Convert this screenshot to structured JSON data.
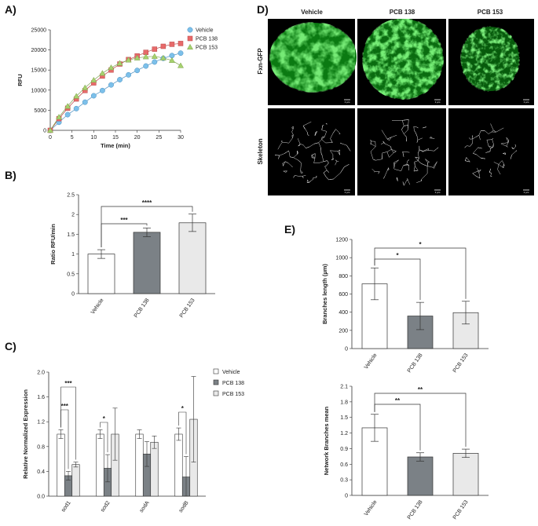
{
  "colors": {
    "vehicle": "#7cc0ea",
    "pcb138": "#e76a6a",
    "pcb153": "#a6d26e",
    "bar_vehicle": "#ffffff",
    "bar_pcb138": "#7b8186",
    "bar_pcb153": "#e9e9e9",
    "green": "#2ecf2e"
  },
  "panels": {
    "a": "A)",
    "b": "B)",
    "c": "C)",
    "d": "D)",
    "e": "E)"
  },
  "panel_d": {
    "columns": [
      "Vehicle",
      "PCB 138",
      "PCB 153"
    ],
    "rows": [
      "Fxn-GFP",
      "Skeleton"
    ],
    "scale_label": "1 µm"
  },
  "chart_data": [
    {
      "id": "A",
      "type": "line",
      "xlabel": "Time (min)",
      "ylabel": "RFU",
      "xlim": [
        0,
        30
      ],
      "ylim": [
        0,
        25000
      ],
      "xticks": [
        0,
        5,
        10,
        15,
        20,
        25,
        30
      ],
      "yticks": [
        0,
        5000,
        10000,
        15000,
        20000,
        25000
      ],
      "legend_position": "top-right",
      "series": [
        {
          "name": "Vehicle",
          "marker": "circle",
          "x": [
            0,
            2,
            4,
            6,
            8,
            10,
            12,
            14,
            16,
            18,
            20,
            22,
            24,
            26,
            28,
            30
          ],
          "y": [
            0,
            2000,
            3900,
            5400,
            7000,
            8600,
            9900,
            11300,
            12600,
            13800,
            14900,
            16000,
            17000,
            17900,
            18600,
            19200
          ]
        },
        {
          "name": "PCB 138",
          "marker": "square",
          "x": [
            0,
            2,
            4,
            6,
            8,
            10,
            12,
            14,
            16,
            18,
            20,
            22,
            24,
            26,
            28,
            30
          ],
          "y": [
            0,
            2900,
            5500,
            7800,
            9900,
            11800,
            13500,
            15000,
            16500,
            17600,
            18500,
            19400,
            20200,
            20900,
            21400,
            21600
          ]
        },
        {
          "name": "PCB 153",
          "marker": "triangle",
          "x": [
            0,
            2,
            4,
            6,
            8,
            10,
            12,
            14,
            16,
            18,
            20,
            22,
            24,
            26,
            28,
            30
          ],
          "y": [
            0,
            3300,
            6000,
            8500,
            10600,
            12500,
            14200,
            15600,
            16700,
            17500,
            18000,
            18300,
            18400,
            18000,
            17400,
            16100
          ]
        }
      ]
    },
    {
      "id": "B",
      "type": "bar",
      "ylabel": "Ratio RFU/min",
      "ylim": [
        0,
        2.5
      ],
      "yticks": [
        0,
        0.5,
        1,
        1.5,
        2,
        2.5
      ],
      "categories": [
        "Vehicle",
        "PCB 138",
        "PCB 153"
      ],
      "values": [
        1.0,
        1.55,
        1.79
      ],
      "errors": [
        0.11,
        0.11,
        0.22
      ],
      "annotations": [
        {
          "from": 0,
          "to": 1,
          "label": "***"
        },
        {
          "from": 0,
          "to": 2,
          "label": "****"
        }
      ]
    },
    {
      "id": "C",
      "type": "bar",
      "ylabel": "Relative Normalized Expression",
      "ylim": [
        0,
        2.0
      ],
      "yticks": [
        0,
        0.4,
        0.8,
        1.2,
        1.6,
        2.0
      ],
      "categories": [
        "sod1",
        "sod2",
        "sodA",
        "sodB"
      ],
      "legend_position": "top-right",
      "series": [
        {
          "name": "Vehicle",
          "values": [
            1.0,
            1.0,
            1.0,
            1.0
          ],
          "errors": [
            0.07,
            0.07,
            0.07,
            0.1
          ]
        },
        {
          "name": "PCB 138",
          "values": [
            0.33,
            0.45,
            0.68,
            0.31
          ],
          "errors": [
            0.07,
            0.22,
            0.2,
            0.33
          ]
        },
        {
          "name": "PCB 153",
          "values": [
            0.51,
            1.0,
            0.87,
            1.24
          ],
          "errors": [
            0.04,
            0.42,
            0.1,
            0.69
          ]
        }
      ],
      "annotations": [
        {
          "group": 0,
          "from": 0,
          "to": 1,
          "label": "***"
        },
        {
          "group": 0,
          "from": 0,
          "to": 2,
          "label": "***"
        },
        {
          "group": 1,
          "from": 0,
          "to": 1,
          "label": "*"
        },
        {
          "group": 3,
          "from": 0,
          "to": 1,
          "label": "*"
        }
      ]
    },
    {
      "id": "E1",
      "type": "bar",
      "ylabel": "Branches length (µm)",
      "ylim": [
        0,
        1200
      ],
      "yticks": [
        0,
        200,
        400,
        600,
        800,
        1000,
        1200
      ],
      "categories": [
        "Vehicle",
        "PCB 138",
        "PCB 153"
      ],
      "values": [
        712,
        358,
        395
      ],
      "errors": [
        175,
        150,
        125
      ],
      "annotations": [
        {
          "from": 0,
          "to": 1,
          "label": "*"
        },
        {
          "from": 0,
          "to": 2,
          "label": "*"
        }
      ]
    },
    {
      "id": "E2",
      "type": "bar",
      "ylabel": "Network Branches mean",
      "ylim": [
        0,
        2.1
      ],
      "yticks": [
        0,
        0.3,
        0.6,
        0.9,
        1.2,
        1.5,
        1.8,
        2.1
      ],
      "categories": [
        "Vehicle",
        "PCB 138",
        "PCB 153"
      ],
      "values": [
        1.3,
        0.74,
        0.81
      ],
      "errors": [
        0.26,
        0.08,
        0.08
      ],
      "annotations": [
        {
          "from": 0,
          "to": 1,
          "label": "**"
        },
        {
          "from": 0,
          "to": 2,
          "label": "**"
        }
      ]
    }
  ]
}
